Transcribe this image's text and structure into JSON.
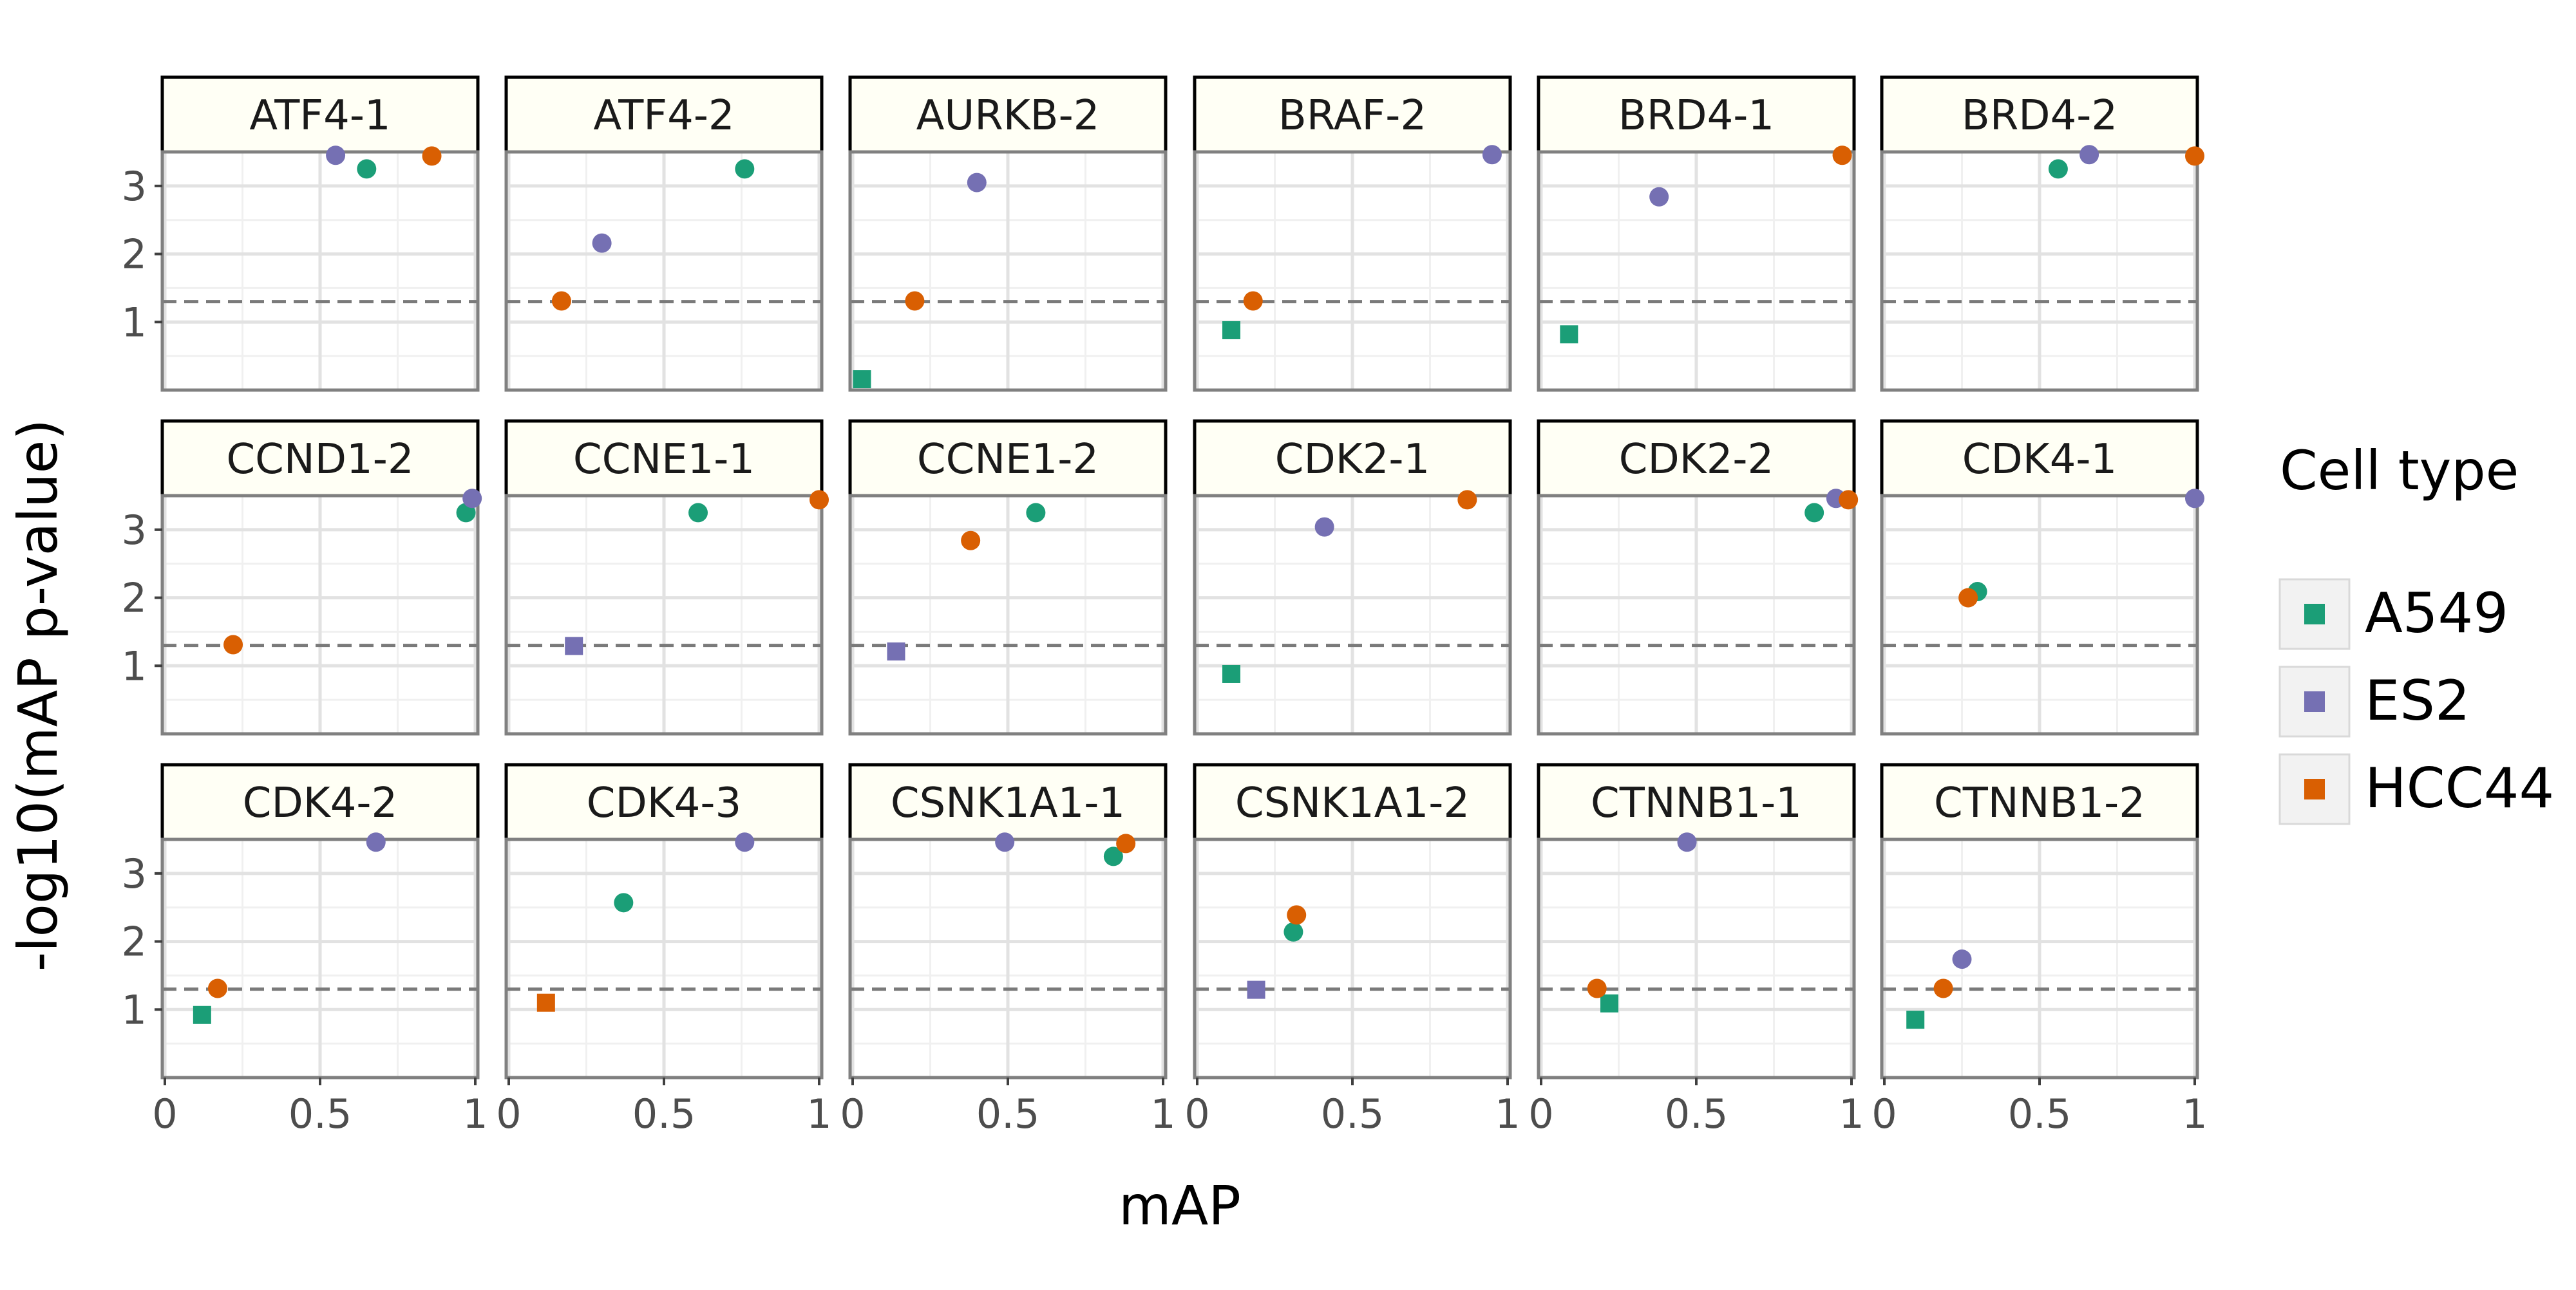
{
  "chart_data": {
    "type": "scatter",
    "xlabel": "mAP",
    "ylabel": "-log10(mAP p-value)",
    "xlim": [
      0,
      1
    ],
    "ylim": [
      0,
      3.5
    ],
    "x_ticks": [
      {
        "value": 0,
        "label": "0"
      },
      {
        "value": 0.5,
        "label": "0.5"
      },
      {
        "value": 1,
        "label": "1"
      }
    ],
    "y_ticks": [
      {
        "value": 1,
        "label": "1"
      },
      {
        "value": 2,
        "label": "2"
      },
      {
        "value": 3,
        "label": "3"
      }
    ],
    "reference_line": {
      "y": 1.3,
      "style": "dashed"
    },
    "grid": true,
    "legend": {
      "title": "Cell type",
      "position": "right",
      "entries": [
        {
          "name": "A549",
          "color": "#1b9e77"
        },
        {
          "name": "ES2",
          "color": "#7570b3"
        },
        {
          "name": "HCC44",
          "color": "#d95f02"
        }
      ]
    },
    "shape_encoding": {
      "above_threshold": "circle",
      "below_threshold": "square"
    },
    "panels": [
      {
        "title": "ATF4-1",
        "points": [
          {
            "cell": "A549",
            "x": 0.65,
            "y": 3.25
          },
          {
            "cell": "ES2",
            "x": 0.55,
            "y": 3.45
          },
          {
            "cell": "HCC44",
            "x": 0.86,
            "y": 3.44
          }
        ]
      },
      {
        "title": "ATF4-2",
        "points": [
          {
            "cell": "A549",
            "x": 0.76,
            "y": 3.25
          },
          {
            "cell": "ES2",
            "x": 0.3,
            "y": 2.16
          },
          {
            "cell": "HCC44",
            "x": 0.17,
            "y": 1.31
          }
        ]
      },
      {
        "title": "AURKB-2",
        "points": [
          {
            "cell": "A549",
            "x": 0.03,
            "y": 0.16
          },
          {
            "cell": "ES2",
            "x": 0.4,
            "y": 3.05
          },
          {
            "cell": "HCC44",
            "x": 0.2,
            "y": 1.31
          }
        ]
      },
      {
        "title": "BRAF-2",
        "points": [
          {
            "cell": "A549",
            "x": 0.11,
            "y": 0.88
          },
          {
            "cell": "ES2",
            "x": 0.95,
            "y": 3.46
          },
          {
            "cell": "HCC44",
            "x": 0.18,
            "y": 1.31
          }
        ]
      },
      {
        "title": "BRD4-1",
        "points": [
          {
            "cell": "A549",
            "x": 0.09,
            "y": 0.82
          },
          {
            "cell": "ES2",
            "x": 0.38,
            "y": 2.84
          },
          {
            "cell": "HCC44",
            "x": 0.97,
            "y": 3.45
          }
        ]
      },
      {
        "title": "BRD4-2",
        "points": [
          {
            "cell": "A549",
            "x": 0.56,
            "y": 3.25
          },
          {
            "cell": "ES2",
            "x": 0.66,
            "y": 3.46
          },
          {
            "cell": "HCC44",
            "x": 1.0,
            "y": 3.44
          }
        ]
      },
      {
        "title": "CCND1-2",
        "points": [
          {
            "cell": "A549",
            "x": 0.97,
            "y": 3.25
          },
          {
            "cell": "ES2",
            "x": 0.99,
            "y": 3.46
          },
          {
            "cell": "HCC44",
            "x": 0.22,
            "y": 1.31
          }
        ]
      },
      {
        "title": "CCNE1-1",
        "points": [
          {
            "cell": "A549",
            "x": 0.61,
            "y": 3.25
          },
          {
            "cell": "ES2",
            "x": 0.21,
            "y": 1.29
          },
          {
            "cell": "HCC44",
            "x": 1.0,
            "y": 3.44
          }
        ]
      },
      {
        "title": "CCNE1-2",
        "points": [
          {
            "cell": "A549",
            "x": 0.59,
            "y": 3.25
          },
          {
            "cell": "ES2",
            "x": 0.14,
            "y": 1.21
          },
          {
            "cell": "HCC44",
            "x": 0.38,
            "y": 2.84
          }
        ]
      },
      {
        "title": "CDK2-1",
        "points": [
          {
            "cell": "A549",
            "x": 0.11,
            "y": 0.88
          },
          {
            "cell": "ES2",
            "x": 0.41,
            "y": 3.04
          },
          {
            "cell": "HCC44",
            "x": 0.87,
            "y": 3.44
          }
        ]
      },
      {
        "title": "CDK2-2",
        "points": [
          {
            "cell": "A549",
            "x": 0.88,
            "y": 3.25
          },
          {
            "cell": "ES2",
            "x": 0.95,
            "y": 3.46
          },
          {
            "cell": "HCC44",
            "x": 0.99,
            "y": 3.44
          }
        ]
      },
      {
        "title": "CDK4-1",
        "points": [
          {
            "cell": "A549",
            "x": 0.3,
            "y": 2.09
          },
          {
            "cell": "ES2",
            "x": 1.0,
            "y": 3.46
          },
          {
            "cell": "HCC44",
            "x": 0.27,
            "y": 2.0
          }
        ]
      },
      {
        "title": "CDK4-2",
        "points": [
          {
            "cell": "A549",
            "x": 0.12,
            "y": 0.92
          },
          {
            "cell": "ES2",
            "x": 0.68,
            "y": 3.46
          },
          {
            "cell": "HCC44",
            "x": 0.17,
            "y": 1.31
          }
        ]
      },
      {
        "title": "CDK4-3",
        "points": [
          {
            "cell": "A549",
            "x": 0.37,
            "y": 2.57
          },
          {
            "cell": "ES2",
            "x": 0.76,
            "y": 3.46
          },
          {
            "cell": "HCC44",
            "x": 0.12,
            "y": 1.1
          }
        ]
      },
      {
        "title": "CSNK1A1-1",
        "points": [
          {
            "cell": "A549",
            "x": 0.84,
            "y": 3.25
          },
          {
            "cell": "ES2",
            "x": 0.49,
            "y": 3.46
          },
          {
            "cell": "HCC44",
            "x": 0.88,
            "y": 3.44
          }
        ]
      },
      {
        "title": "CSNK1A1-2",
        "points": [
          {
            "cell": "A549",
            "x": 0.31,
            "y": 2.14
          },
          {
            "cell": "ES2",
            "x": 0.19,
            "y": 1.29
          },
          {
            "cell": "HCC44",
            "x": 0.32,
            "y": 2.39
          }
        ]
      },
      {
        "title": "CTNNB1-1",
        "points": [
          {
            "cell": "A549",
            "x": 0.22,
            "y": 1.09
          },
          {
            "cell": "ES2",
            "x": 0.47,
            "y": 3.46
          },
          {
            "cell": "HCC44",
            "x": 0.18,
            "y": 1.31
          }
        ]
      },
      {
        "title": "CTNNB1-2",
        "points": [
          {
            "cell": "A549",
            "x": 0.1,
            "y": 0.85
          },
          {
            "cell": "ES2",
            "x": 0.25,
            "y": 1.74
          },
          {
            "cell": "HCC44",
            "x": 0.19,
            "y": 1.31
          }
        ]
      }
    ]
  }
}
